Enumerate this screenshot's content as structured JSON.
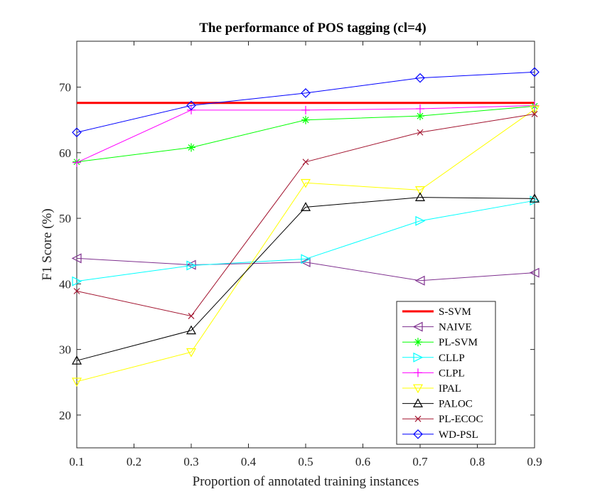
{
  "chart_data": {
    "type": "line",
    "title": "The performance of POS tagging (cl=4)",
    "xlabel": "Proportion of annotated training instances",
    "ylabel": "F1 Score (%)",
    "xlim": [
      0.1,
      0.9
    ],
    "ylim": [
      15,
      77
    ],
    "xticks": [
      0.1,
      0.2,
      0.3,
      0.4,
      0.5,
      0.6,
      0.7,
      0.8,
      0.9
    ],
    "xtick_labels": [
      "0.1",
      "0.2",
      "0.3",
      "0.4",
      "0.5",
      "0.6",
      "0.7",
      "0.8",
      "0.9"
    ],
    "yticks": [
      20,
      30,
      40,
      50,
      60,
      70
    ],
    "ytick_labels": [
      "20",
      "30",
      "40",
      "50",
      "60",
      "70"
    ],
    "grid": false,
    "legend_position": "bottom-right",
    "x": [
      0.1,
      0.3,
      0.5,
      0.7,
      0.9
    ],
    "series": [
      {
        "name": "S-SVM",
        "color": "#ff0000",
        "marker": "none",
        "values": [
          67.6,
          67.6,
          67.6,
          67.6,
          67.6
        ]
      },
      {
        "name": "NAIVE",
        "color": "#7e2f8e",
        "marker": "triangle-left",
        "values": [
          43.9,
          42.9,
          43.3,
          40.5,
          41.7
        ]
      },
      {
        "name": "PL-SVM",
        "color": "#00ff00",
        "marker": "asterisk",
        "values": [
          58.6,
          60.8,
          65.0,
          65.6,
          67.1
        ]
      },
      {
        "name": "CLLP",
        "color": "#00ffff",
        "marker": "triangle-right",
        "values": [
          40.4,
          42.8,
          43.8,
          49.6,
          52.7
        ]
      },
      {
        "name": "CLPL",
        "color": "#ff00ff",
        "marker": "plus",
        "values": [
          58.5,
          66.5,
          66.5,
          66.7,
          67.2
        ]
      },
      {
        "name": "IPAL",
        "color": "#ffff00",
        "marker": "triangle-down",
        "values": [
          25.1,
          29.6,
          55.4,
          54.3,
          66.6
        ]
      },
      {
        "name": "PALOC",
        "color": "#000000",
        "marker": "triangle-up",
        "values": [
          28.3,
          32.9,
          51.7,
          53.2,
          53.0
        ]
      },
      {
        "name": "PL-ECOC",
        "color": "#a2142f",
        "marker": "x",
        "values": [
          38.9,
          35.1,
          58.6,
          63.1,
          65.9
        ]
      },
      {
        "name": "WD-PSL",
        "color": "#0000ff",
        "marker": "diamond",
        "values": [
          63.1,
          67.2,
          69.1,
          71.4,
          72.3
        ]
      }
    ]
  }
}
